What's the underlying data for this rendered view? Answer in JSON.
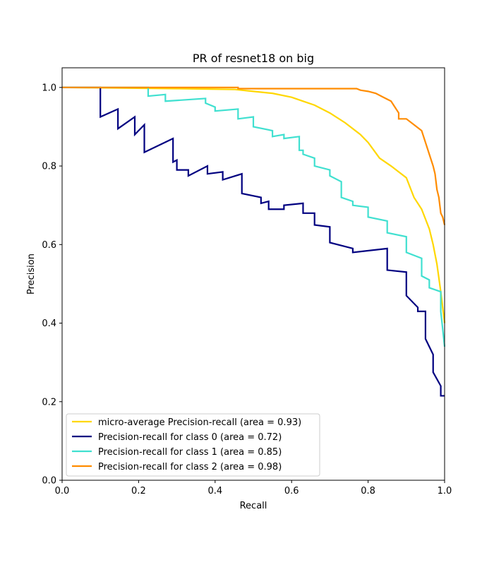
{
  "chart_data": {
    "type": "line",
    "title": "PR of resnet18 on big",
    "xlabel": "Recall",
    "ylabel": "Precision",
    "xlim": [
      0.0,
      1.0
    ],
    "ylim": [
      0.0,
      1.05
    ],
    "xticks": [
      {
        "value": 0.0,
        "label": "0.0"
      },
      {
        "value": 0.2,
        "label": "0.2"
      },
      {
        "value": 0.4,
        "label": "0.4"
      },
      {
        "value": 0.6,
        "label": "0.6"
      },
      {
        "value": 0.8,
        "label": "0.8"
      },
      {
        "value": 1.0,
        "label": "1.0"
      }
    ],
    "yticks": [
      {
        "value": 0.0,
        "label": "0.0"
      },
      {
        "value": 0.2,
        "label": "0.2"
      },
      {
        "value": 0.4,
        "label": "0.4"
      },
      {
        "value": 0.6,
        "label": "0.6"
      },
      {
        "value": 0.8,
        "label": "0.8"
      },
      {
        "value": 1.0,
        "label": "1.0"
      }
    ],
    "grid": false,
    "legend_position": "lower-left",
    "series": [
      {
        "name": "micro-average Precision-recall (area = 0.93)",
        "color": "#ffd700",
        "x": [
          0.0,
          0.3,
          0.45,
          0.5,
          0.55,
          0.6,
          0.63,
          0.66,
          0.7,
          0.74,
          0.78,
          0.8,
          0.83,
          0.86,
          0.9,
          0.92,
          0.94,
          0.96,
          0.97,
          0.98,
          0.99,
          1.0
        ],
        "y": [
          1.0,
          0.997,
          0.995,
          0.99,
          0.985,
          0.975,
          0.965,
          0.955,
          0.935,
          0.91,
          0.88,
          0.86,
          0.82,
          0.8,
          0.77,
          0.72,
          0.69,
          0.64,
          0.6,
          0.55,
          0.48,
          0.4
        ]
      },
      {
        "name": "Precision-recall for class 0 (area = 0.72)",
        "color": "#000080",
        "x": [
          0.0,
          0.1,
          0.1,
          0.146,
          0.146,
          0.19,
          0.19,
          0.215,
          0.215,
          0.29,
          0.29,
          0.3,
          0.3,
          0.33,
          0.33,
          0.38,
          0.38,
          0.42,
          0.42,
          0.47,
          0.47,
          0.52,
          0.52,
          0.54,
          0.54,
          0.58,
          0.58,
          0.63,
          0.63,
          0.66,
          0.66,
          0.7,
          0.7,
          0.76,
          0.76,
          0.85,
          0.85,
          0.9,
          0.9,
          0.93,
          0.93,
          0.95,
          0.95,
          0.97,
          0.97,
          0.99,
          0.99,
          1.0
        ],
        "y": [
          1.0,
          1.0,
          0.925,
          0.945,
          0.895,
          0.925,
          0.88,
          0.905,
          0.835,
          0.87,
          0.81,
          0.815,
          0.79,
          0.79,
          0.775,
          0.8,
          0.78,
          0.785,
          0.765,
          0.78,
          0.73,
          0.72,
          0.705,
          0.71,
          0.69,
          0.69,
          0.7,
          0.705,
          0.68,
          0.68,
          0.65,
          0.645,
          0.605,
          0.59,
          0.58,
          0.59,
          0.535,
          0.53,
          0.47,
          0.44,
          0.43,
          0.43,
          0.36,
          0.32,
          0.275,
          0.24,
          0.215,
          0.215
        ]
      },
      {
        "name": "Precision-recall for class 1 (area = 0.85)",
        "color": "#40e0d0",
        "x": [
          0.0,
          0.225,
          0.225,
          0.27,
          0.27,
          0.375,
          0.375,
          0.4,
          0.4,
          0.46,
          0.46,
          0.5,
          0.5,
          0.55,
          0.55,
          0.58,
          0.58,
          0.62,
          0.62,
          0.63,
          0.63,
          0.66,
          0.66,
          0.7,
          0.7,
          0.73,
          0.73,
          0.76,
          0.76,
          0.8,
          0.8,
          0.85,
          0.85,
          0.9,
          0.9,
          0.94,
          0.94,
          0.96,
          0.96,
          0.99,
          0.99,
          1.0
        ],
        "y": [
          1.0,
          1.0,
          0.978,
          0.982,
          0.965,
          0.972,
          0.96,
          0.95,
          0.94,
          0.945,
          0.92,
          0.925,
          0.9,
          0.89,
          0.875,
          0.88,
          0.87,
          0.875,
          0.84,
          0.84,
          0.83,
          0.82,
          0.8,
          0.79,
          0.775,
          0.76,
          0.72,
          0.71,
          0.7,
          0.695,
          0.67,
          0.66,
          0.63,
          0.62,
          0.58,
          0.565,
          0.52,
          0.51,
          0.49,
          0.48,
          0.43,
          0.34
        ]
      },
      {
        "name": "Precision-recall for class 2 (area = 0.98)",
        "color": "#ff8c00",
        "x": [
          0.0,
          0.46,
          0.46,
          0.77,
          0.78,
          0.8,
          0.82,
          0.84,
          0.86,
          0.87,
          0.88,
          0.88,
          0.9,
          0.92,
          0.94,
          0.95,
          0.96,
          0.97,
          0.975,
          0.98,
          0.985,
          0.99,
          0.995,
          1.0
        ],
        "y": [
          1.0,
          1.0,
          0.997,
          0.997,
          0.993,
          0.99,
          0.985,
          0.975,
          0.965,
          0.95,
          0.935,
          0.92,
          0.92,
          0.905,
          0.89,
          0.86,
          0.83,
          0.8,
          0.78,
          0.74,
          0.72,
          0.68,
          0.67,
          0.65
        ]
      }
    ]
  }
}
